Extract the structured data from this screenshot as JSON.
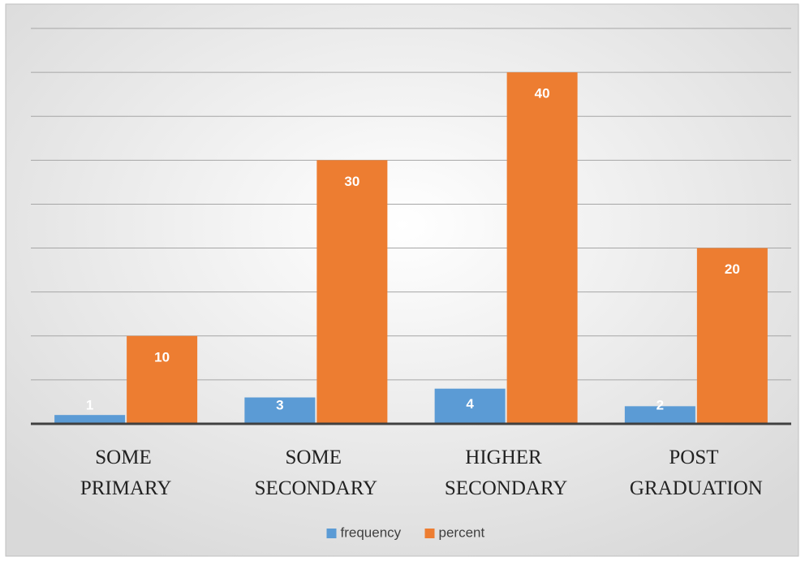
{
  "chart_data": {
    "type": "bar",
    "categories": [
      "SOME PRIMARY",
      "SOME SECONDARY",
      "HIGHER SECONDARY",
      "POST GRADUATION"
    ],
    "series": [
      {
        "name": "frequency",
        "color": "#5b9bd5",
        "values": [
          1,
          3,
          4,
          2
        ]
      },
      {
        "name": "percent",
        "color": "#ed7d31",
        "values": [
          10,
          30,
          40,
          20
        ]
      }
    ],
    "ylim": [
      0,
      45
    ],
    "yticks": [
      0,
      5,
      10,
      15,
      20,
      25,
      30,
      35,
      40,
      45
    ],
    "grid": true,
    "legend": "bottom"
  }
}
